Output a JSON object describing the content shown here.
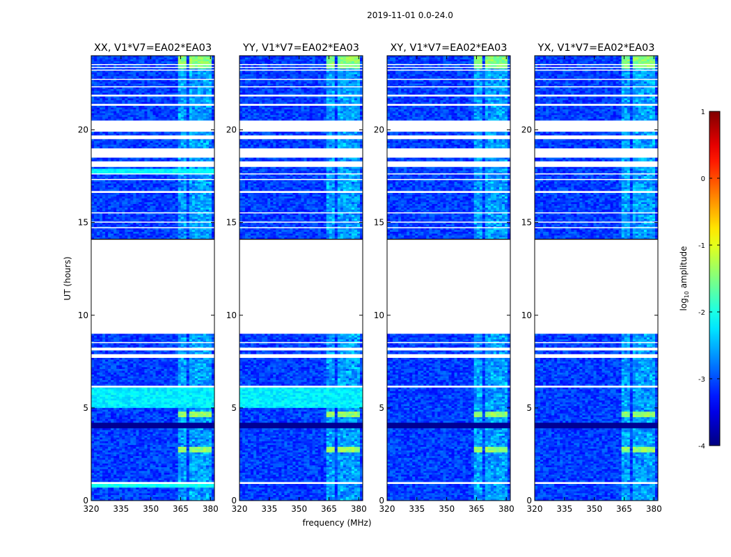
{
  "figure": {
    "suptitle": "2019-11-01 0.0-24.0",
    "xlabel": "frequency (MHz)",
    "ylabel": "UT (hours)"
  },
  "colorbar": {
    "label_main": "log",
    "label_sub": "10",
    "label_rest": " amplitude",
    "ticks": [
      1,
      0,
      -1,
      -2,
      -3,
      -4
    ],
    "range": [
      -4,
      1
    ],
    "colormap": "jet"
  },
  "chart_data": {
    "type": "heatmap",
    "xlim": [
      320,
      382
    ],
    "ylim": [
      0,
      24
    ],
    "xticks": [
      320,
      335,
      350,
      365,
      380
    ],
    "yticks": [
      0,
      5,
      10,
      15,
      20
    ],
    "panels": [
      {
        "title": "XX, V1*V7=EA02*EA03"
      },
      {
        "title": "YY, V1*V7=EA02*EA03"
      },
      {
        "title": "XY, V1*V7=EA02*EA03"
      },
      {
        "title": "YX, V1*V7=EA02*EA03"
      }
    ],
    "data_gaps_ut_hours": [
      [
        0.9,
        1.0
      ],
      [
        6.1,
        6.2
      ],
      [
        7.7,
        7.9
      ],
      [
        8.1,
        8.25
      ],
      [
        8.5,
        8.55
      ],
      [
        9.0,
        14.1
      ],
      [
        14.7,
        14.75
      ],
      [
        15.0,
        15.05
      ],
      [
        15.5,
        15.55
      ],
      [
        16.6,
        16.7
      ],
      [
        17.3,
        17.35
      ],
      [
        17.6,
        17.65
      ],
      [
        18.0,
        18.3
      ],
      [
        18.5,
        19.0
      ],
      [
        19.5,
        19.7
      ],
      [
        19.9,
        20.5
      ],
      [
        21.3,
        21.4
      ],
      [
        21.8,
        21.9
      ],
      [
        22.3,
        22.35
      ],
      [
        22.7,
        22.75
      ],
      [
        23.2,
        23.25
      ],
      [
        23.35,
        23.4
      ],
      [
        23.5,
        23.55
      ]
    ],
    "bright_channels_mhz": [
      [
        364,
        368
      ],
      [
        369,
        373
      ],
      [
        374,
        376
      ],
      [
        377,
        380
      ]
    ]
  }
}
